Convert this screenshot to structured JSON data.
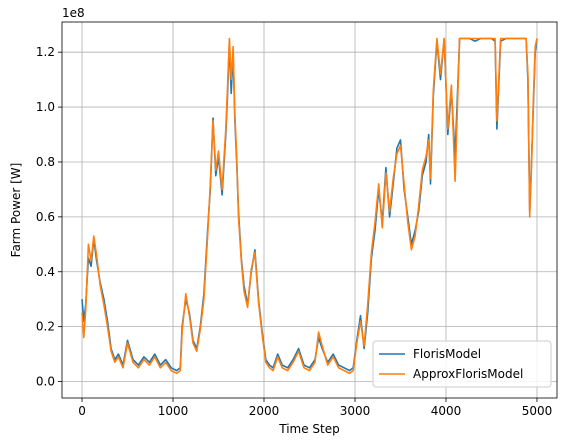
{
  "chart_data": {
    "type": "line",
    "title": "",
    "xlabel": "Time Step",
    "ylabel": "Farm Power [W]",
    "offset_label": "1e8",
    "xlim": [
      -220,
      5220
    ],
    "ylim": [
      -0.06,
      1.31
    ],
    "x_ticks": [
      0,
      1000,
      2000,
      3000,
      4000,
      5000
    ],
    "x_tick_labels": [
      "0",
      "1000",
      "2000",
      "3000",
      "4000",
      "5000"
    ],
    "y_ticks": [
      0.0,
      0.2,
      0.4,
      0.6,
      0.8,
      1.0,
      1.2
    ],
    "y_tick_labels": [
      "0.0",
      "0.2",
      "0.4",
      "0.6",
      "0.8",
      "1.0",
      "1.2"
    ],
    "grid": true,
    "legend_position": "lower-right",
    "series": [
      {
        "name": "FlorisModel",
        "color": "#1f77b4",
        "x": [
          0,
          20,
          40,
          70,
          100,
          130,
          160,
          200,
          240,
          280,
          320,
          360,
          400,
          450,
          500,
          560,
          620,
          680,
          740,
          800,
          860,
          920,
          980,
          1040,
          1080,
          1100,
          1140,
          1180,
          1220,
          1260,
          1300,
          1340,
          1380,
          1410,
          1440,
          1470,
          1500,
          1540,
          1580,
          1600,
          1620,
          1640,
          1660,
          1680,
          1700,
          1720,
          1750,
          1780,
          1820,
          1860,
          1900,
          1940,
          1980,
          2020,
          2060,
          2100,
          2150,
          2200,
          2260,
          2320,
          2380,
          2440,
          2500,
          2560,
          2600,
          2640,
          2700,
          2760,
          2820,
          2880,
          2940,
          2980,
          3020,
          3060,
          3100,
          3140,
          3180,
          3220,
          3260,
          3300,
          3340,
          3380,
          3420,
          3460,
          3500,
          3540,
          3580,
          3620,
          3660,
          3700,
          3740,
          3780,
          3810,
          3830,
          3860,
          3900,
          3940,
          3980,
          4020,
          4060,
          4100,
          4150,
          4200,
          4260,
          4320,
          4380,
          4440,
          4500,
          4540,
          4560,
          4600,
          4660,
          4720,
          4780,
          4840,
          4880,
          4900,
          4920,
          4940,
          4960,
          4980,
          5000
        ],
        "values": [
          0.3,
          0.22,
          0.28,
          0.45,
          0.42,
          0.52,
          0.44,
          0.36,
          0.3,
          0.22,
          0.12,
          0.08,
          0.1,
          0.06,
          0.15,
          0.08,
          0.06,
          0.09,
          0.07,
          0.1,
          0.06,
          0.08,
          0.05,
          0.04,
          0.05,
          0.2,
          0.3,
          0.25,
          0.15,
          0.12,
          0.2,
          0.32,
          0.55,
          0.7,
          0.96,
          0.75,
          0.82,
          0.68,
          0.9,
          1.05,
          1.24,
          1.05,
          1.2,
          0.95,
          0.8,
          0.62,
          0.45,
          0.35,
          0.28,
          0.4,
          0.48,
          0.3,
          0.18,
          0.08,
          0.06,
          0.05,
          0.1,
          0.06,
          0.05,
          0.08,
          0.12,
          0.06,
          0.05,
          0.08,
          0.16,
          0.12,
          0.07,
          0.1,
          0.06,
          0.05,
          0.04,
          0.05,
          0.15,
          0.24,
          0.12,
          0.25,
          0.45,
          0.55,
          0.7,
          0.58,
          0.78,
          0.6,
          0.72,
          0.85,
          0.88,
          0.7,
          0.6,
          0.5,
          0.55,
          0.62,
          0.75,
          0.8,
          0.9,
          0.72,
          1.04,
          1.24,
          1.1,
          1.25,
          0.9,
          1.06,
          0.82,
          1.25,
          1.25,
          1.25,
          1.24,
          1.25,
          1.25,
          1.25,
          1.24,
          0.92,
          1.24,
          1.25,
          1.25,
          1.25,
          1.25,
          1.25,
          1.1,
          0.62,
          0.8,
          1.0,
          1.2,
          1.25
        ]
      },
      {
        "name": "ApproxFlorisModel",
        "color": "#ff7f0e",
        "x": [
          0,
          20,
          40,
          70,
          100,
          130,
          160,
          200,
          240,
          280,
          320,
          360,
          400,
          450,
          500,
          560,
          620,
          680,
          740,
          800,
          860,
          920,
          980,
          1040,
          1080,
          1100,
          1140,
          1180,
          1220,
          1260,
          1300,
          1340,
          1380,
          1410,
          1440,
          1470,
          1500,
          1540,
          1580,
          1600,
          1620,
          1640,
          1660,
          1680,
          1700,
          1720,
          1750,
          1780,
          1820,
          1860,
          1900,
          1940,
          1980,
          2020,
          2060,
          2100,
          2150,
          2200,
          2260,
          2320,
          2380,
          2440,
          2500,
          2560,
          2600,
          2640,
          2700,
          2760,
          2820,
          2880,
          2940,
          2980,
          3020,
          3060,
          3100,
          3140,
          3180,
          3220,
          3260,
          3300,
          3340,
          3380,
          3420,
          3460,
          3500,
          3540,
          3580,
          3620,
          3660,
          3700,
          3740,
          3780,
          3810,
          3830,
          3860,
          3900,
          3940,
          3980,
          4020,
          4060,
          4100,
          4150,
          4200,
          4260,
          4320,
          4380,
          4440,
          4500,
          4540,
          4560,
          4600,
          4660,
          4720,
          4780,
          4840,
          4880,
          4900,
          4920,
          4940,
          4960,
          4980,
          5000
        ],
        "values": [
          0.25,
          0.16,
          0.26,
          0.5,
          0.44,
          0.53,
          0.46,
          0.35,
          0.28,
          0.2,
          0.11,
          0.07,
          0.09,
          0.05,
          0.14,
          0.07,
          0.05,
          0.08,
          0.06,
          0.09,
          0.05,
          0.07,
          0.04,
          0.03,
          0.04,
          0.18,
          0.32,
          0.24,
          0.14,
          0.11,
          0.19,
          0.3,
          0.53,
          0.72,
          0.95,
          0.77,
          0.84,
          0.7,
          0.92,
          1.08,
          1.25,
          1.1,
          1.22,
          0.97,
          0.82,
          0.6,
          0.44,
          0.33,
          0.27,
          0.41,
          0.47,
          0.29,
          0.17,
          0.07,
          0.05,
          0.04,
          0.09,
          0.05,
          0.04,
          0.07,
          0.11,
          0.05,
          0.04,
          0.07,
          0.18,
          0.13,
          0.06,
          0.09,
          0.05,
          0.04,
          0.03,
          0.04,
          0.14,
          0.22,
          0.13,
          0.28,
          0.47,
          0.58,
          0.72,
          0.56,
          0.76,
          0.62,
          0.74,
          0.83,
          0.86,
          0.72,
          0.58,
          0.48,
          0.53,
          0.64,
          0.77,
          0.82,
          0.88,
          0.74,
          1.06,
          1.25,
          1.12,
          1.25,
          0.92,
          1.08,
          0.73,
          1.25,
          1.25,
          1.25,
          1.25,
          1.25,
          1.25,
          1.25,
          1.25,
          0.95,
          1.25,
          1.25,
          1.25,
          1.25,
          1.25,
          1.25,
          1.12,
          0.6,
          0.78,
          1.02,
          1.22,
          1.25
        ]
      }
    ]
  }
}
